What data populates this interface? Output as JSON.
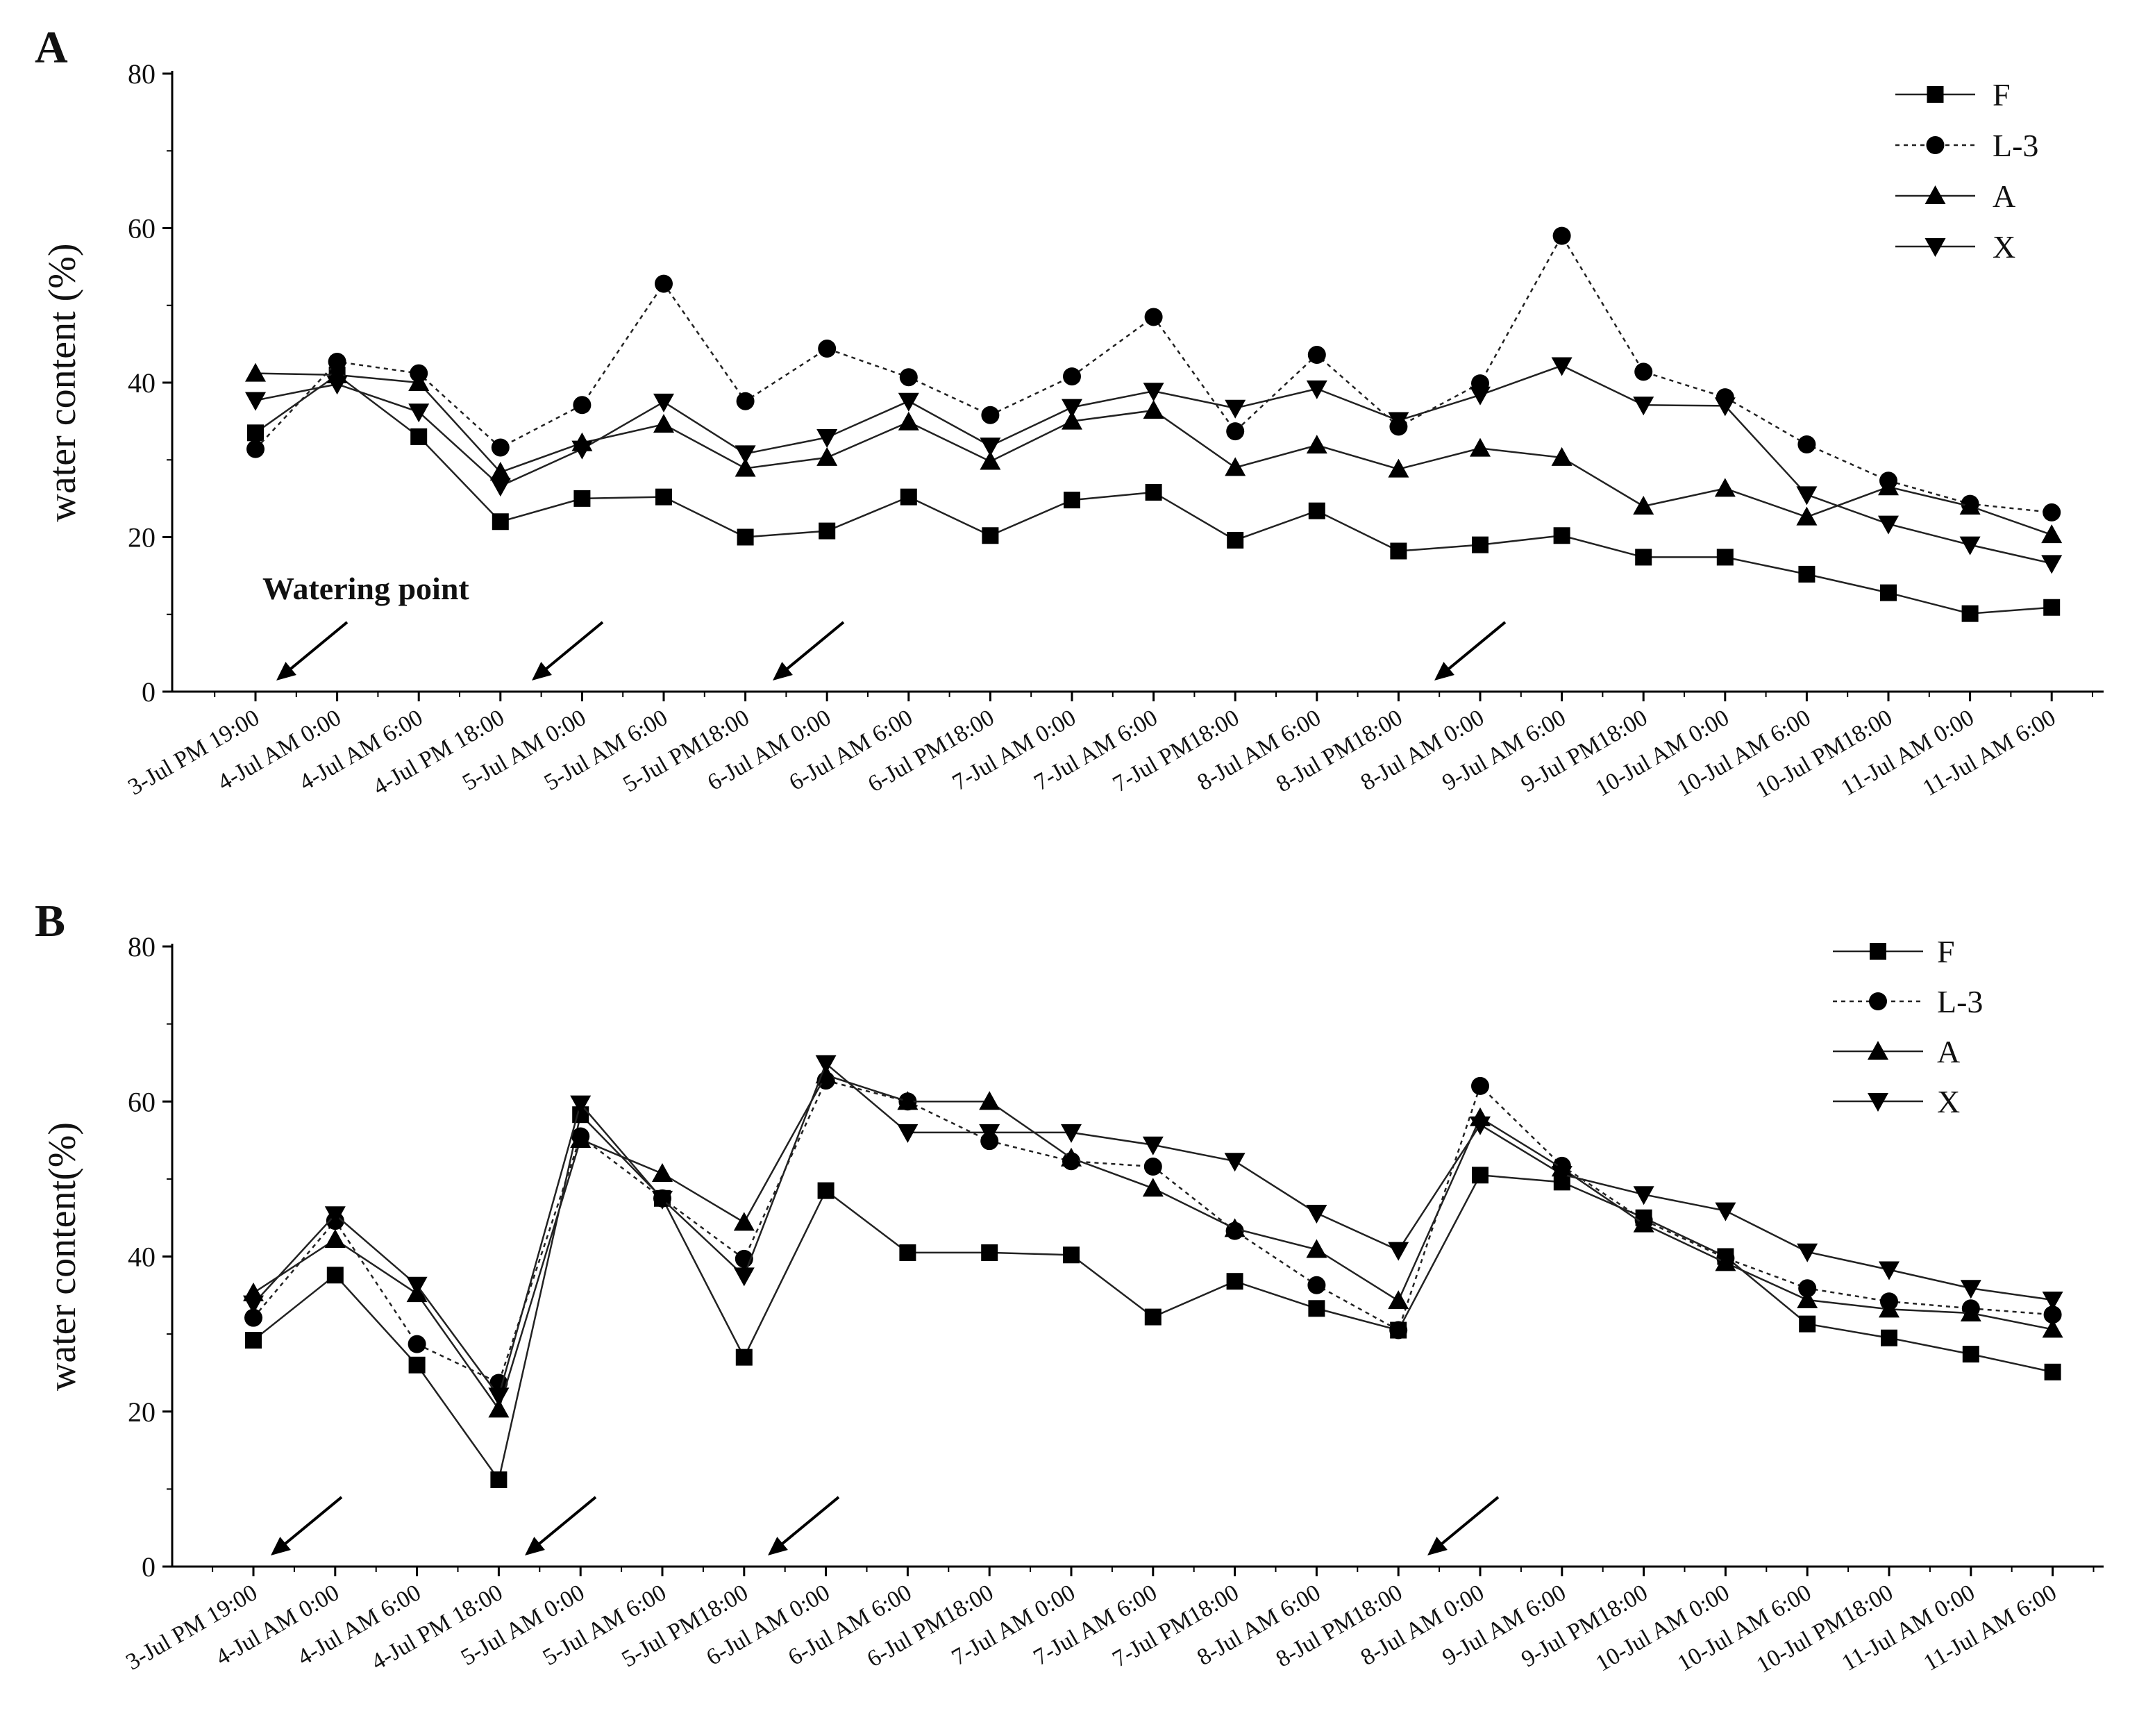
{
  "chart_data": [
    {
      "type": "line",
      "panel_label": "A",
      "ylabel": "water content (%)",
      "xlabel": "",
      "ylim": [
        0,
        80
      ],
      "y_ticks": [
        0,
        20,
        40,
        60,
        80
      ],
      "categories": [
        "3-Jul PM 19:00",
        "4-Jul AM 0:00",
        "4-Jul AM 6:00",
        "4-Jul PM 18:00",
        "5-Jul AM 0:00",
        "5-Jul AM 6:00",
        "5-Jul PM18:00",
        "6-Jul AM 0:00",
        "6-Jul AM 6:00",
        "6-Jul PM18:00",
        "7-Jul AM 0:00",
        "7-Jul AM 6:00",
        "7-Jul PM18:00",
        "8-Jul AM 6:00",
        "8-Jul PM18:00",
        "8-Jul AM 0:00",
        "9-Jul AM 6:00",
        "9-Jul PM18:00",
        "10-Jul AM 0:00",
        "10-Jul AM 6:00",
        "10-Jul PM18:00",
        "11-Jul AM 0:00",
        "11-Jul AM 6:00"
      ],
      "series": [
        {
          "name": "F",
          "marker": "square",
          "dashed": false,
          "values": [
            33.5,
            41,
            33,
            22,
            25,
            25.2,
            20,
            20.8,
            25.2,
            20.2,
            24.8,
            25.8,
            19.6,
            23.4,
            18.2,
            19,
            20.2,
            17.4,
            17.4,
            15.2,
            12.8,
            10.1,
            10.9
          ]
        },
        {
          "name": "L-3",
          "marker": "circle",
          "dashed": true,
          "values": [
            31.4,
            42.7,
            41.2,
            31.6,
            37.1,
            52.8,
            37.6,
            44.4,
            40.7,
            35.8,
            40.8,
            48.5,
            33.7,
            43.6,
            34.3,
            39.9,
            59,
            41.4,
            38.1,
            32,
            27.3,
            24.3,
            23.2
          ]
        },
        {
          "name": "A",
          "marker": "triangle-up",
          "dashed": false,
          "values": [
            41.2,
            41,
            40,
            28.4,
            32.2,
            34.6,
            28.9,
            30.3,
            34.9,
            29.8,
            35,
            36.4,
            29,
            31.9,
            28.8,
            31.5,
            30.3,
            24,
            26.3,
            22.6,
            26.5,
            24,
            20.3
          ]
        },
        {
          "name": "X",
          "marker": "triangle-down",
          "dashed": false,
          "values": [
            37.7,
            39.8,
            36.2,
            26.6,
            31.4,
            37.5,
            30.8,
            32.9,
            37.6,
            31.8,
            36.8,
            38.9,
            36.7,
            39.2,
            35.1,
            38.4,
            42.2,
            37.1,
            37,
            25.5,
            21.7,
            19,
            16.6
          ]
        }
      ],
      "legend_position": "top-right",
      "annotation": "Watering point",
      "watering_arrows_at": [
        "3-Jul PM 19:00",
        "4-Jul PM 18:00",
        "5-Jul PM18:00",
        "8-Jul PM18:00"
      ]
    },
    {
      "type": "line",
      "panel_label": "B",
      "ylabel": "water content(%)",
      "xlabel": "",
      "ylim": [
        0,
        80
      ],
      "y_ticks": [
        0,
        20,
        40,
        60,
        80
      ],
      "categories": [
        "3-Jul PM 19:00",
        "4-Jul AM 0:00",
        "4-Jul AM 6:00",
        "4-Jul PM 18:00",
        "5-Jul AM 0:00",
        "5-Jul AM 6:00",
        "5-Jul PM18:00",
        "6-Jul AM 0:00",
        "6-Jul AM 6:00",
        "6-Jul PM18:00",
        "7-Jul AM 0:00",
        "7-Jul AM 6:00",
        "7-Jul PM18:00",
        "8-Jul AM 6:00",
        "8-Jul PM18:00",
        "8-Jul AM 0:00",
        "9-Jul AM 6:00",
        "9-Jul PM18:00",
        "10-Jul AM 0:00",
        "10-Jul AM 6:00",
        "10-Jul PM18:00",
        "11-Jul AM 0:00",
        "11-Jul AM 6:00"
      ],
      "series": [
        {
          "name": "F",
          "marker": "square",
          "dashed": false,
          "values": [
            29.2,
            37.6,
            26,
            11.2,
            58.3,
            47.5,
            27,
            48.5,
            40.5,
            40.5,
            40.2,
            32.2,
            36.8,
            33.3,
            30.5,
            50.5,
            49.6,
            45,
            40,
            31.3,
            29.5,
            27.4,
            25.1
          ]
        },
        {
          "name": "L-3",
          "marker": "circle",
          "dashed": true,
          "values": [
            32.1,
            44.6,
            28.7,
            23.7,
            55.5,
            47.5,
            39.7,
            62.7,
            60,
            54.9,
            52.3,
            51.6,
            43.3,
            36.3,
            30.5,
            62,
            51.7,
            44.7,
            39.8,
            35.9,
            34.2,
            33.3,
            32.5
          ]
        },
        {
          "name": "A",
          "marker": "triangle-up",
          "dashed": false,
          "values": [
            35.3,
            42.2,
            35.2,
            20.3,
            55.1,
            50.7,
            44.4,
            63.4,
            60,
            60,
            52.7,
            48.8,
            43.6,
            40.9,
            34.3,
            57.9,
            51.4,
            44.2,
            39.2,
            34.4,
            33.2,
            32.7,
            30.6
          ]
        },
        {
          "name": "X",
          "marker": "triangle-down",
          "dashed": false,
          "values": [
            33.9,
            45.4,
            36.3,
            22,
            59.7,
            47.4,
            37.5,
            64.9,
            56,
            56,
            56,
            54.4,
            52.3,
            45.6,
            40.8,
            57,
            50.6,
            48,
            45.9,
            40.6,
            38.3,
            35.9,
            34.4
          ]
        }
      ],
      "legend_position": "top-right",
      "watering_arrows_at": [
        "3-Jul PM 19:00",
        "4-Jul PM 18:00",
        "5-Jul PM18:00",
        "8-Jul PM18:00"
      ]
    }
  ]
}
